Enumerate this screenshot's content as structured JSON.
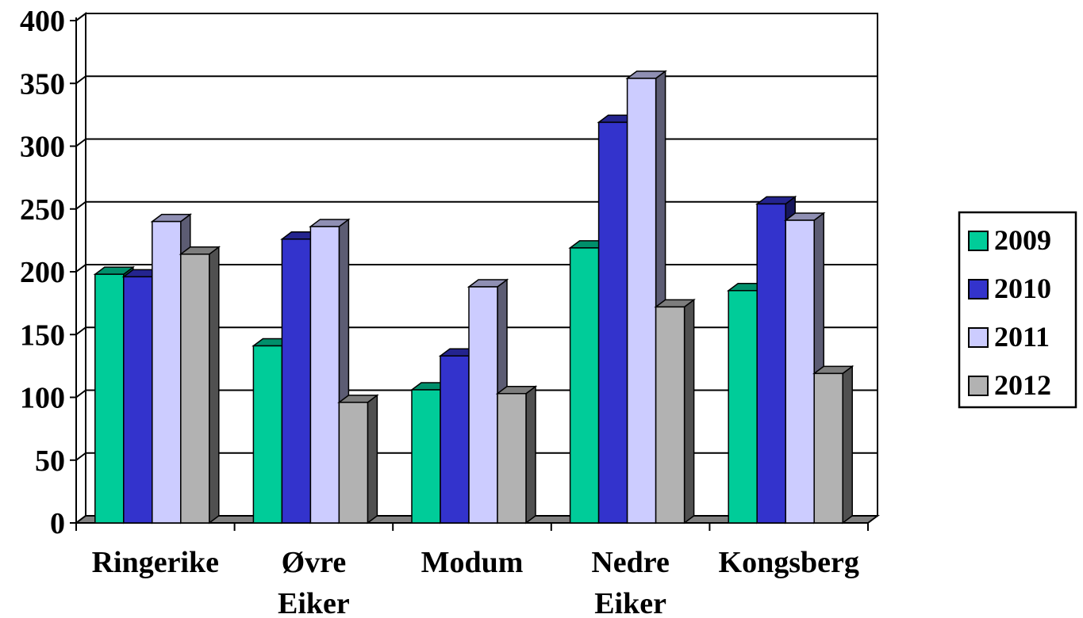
{
  "chart_data": {
    "type": "bar",
    "title": "",
    "xlabel": "",
    "ylabel": "",
    "categories": [
      [
        "Ringerike"
      ],
      [
        "Øvre",
        "Eiker"
      ],
      [
        "Modum"
      ],
      [
        "Nedre",
        "Eiker"
      ],
      [
        "Kongsberg"
      ]
    ],
    "series": [
      {
        "name": "2009",
        "color": "#00cc99",
        "values": [
          198,
          141,
          106,
          219,
          185
        ]
      },
      {
        "name": "2010",
        "color": "#3333cc",
        "values": [
          196,
          226,
          133,
          319,
          254
        ]
      },
      {
        "name": "2011",
        "color": "#ccccff",
        "values": [
          240,
          236,
          188,
          354,
          241
        ]
      },
      {
        "name": "2012",
        "color": "#b2b2b2",
        "values": [
          214,
          96,
          103,
          172,
          119
        ]
      }
    ],
    "ylim": [
      0,
      400
    ],
    "yticks": [
      0,
      50,
      100,
      150,
      200,
      250,
      300,
      350,
      400
    ],
    "grid": true,
    "legend_position": "right",
    "style": "3d-bar"
  }
}
